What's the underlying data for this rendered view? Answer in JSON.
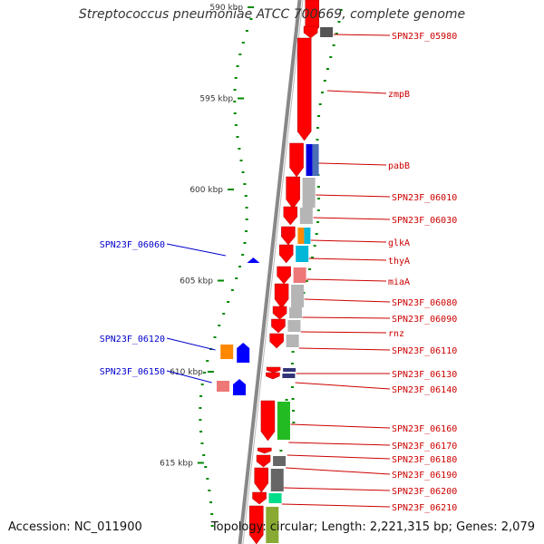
{
  "title": "Streptococcus pneumoniae ATCC 700669, complete genome",
  "ticks": [
    {
      "label": "590 kbp",
      "kbp": 590
    },
    {
      "label": "595 kbp",
      "kbp": 595
    },
    {
      "label": "600 kbp",
      "kbp": 600
    },
    {
      "label": "605 kbp",
      "kbp": 605
    },
    {
      "label": "610 kbp",
      "kbp": 610
    },
    {
      "label": "615 kbp",
      "kbp": 615
    }
  ],
  "right_labels": [
    {
      "text": "SPN23F_05980",
      "gene": "SPN23F_05980",
      "color": "#cc0000"
    },
    {
      "text": "zmpB",
      "gene": "zmpB",
      "color": "#cc0000"
    },
    {
      "text": "pabB",
      "gene": "pabB",
      "color": "#cc0000"
    },
    {
      "text": "SPN23F_06010",
      "gene": "SPN23F_06010",
      "color": "#cc0000"
    },
    {
      "text": "SPN23F_06030",
      "gene": "SPN23F_06030",
      "color": "#cc0000"
    },
    {
      "text": "glkA",
      "gene": "glkA",
      "color": "#cc0000"
    },
    {
      "text": "thyA",
      "gene": "thyA",
      "color": "#cc0000"
    },
    {
      "text": "miaA",
      "gene": "miaA",
      "color": "#cc0000"
    },
    {
      "text": "SPN23F_06080",
      "gene": "SPN23F_06080",
      "color": "#cc0000"
    },
    {
      "text": "SPN23F_06090",
      "gene": "SPN23F_06090",
      "color": "#cc0000"
    },
    {
      "text": "rnz",
      "gene": "rnz",
      "color": "#cc0000"
    },
    {
      "text": "SPN23F_06110",
      "gene": "SPN23F_06110",
      "color": "#cc0000"
    },
    {
      "text": "SPN23F_06130",
      "gene": "SPN23F_06130",
      "color": "#cc0000"
    },
    {
      "text": "SPN23F_06140",
      "gene": "SPN23F_06140",
      "color": "#cc0000"
    },
    {
      "text": "SPN23F_06160",
      "gene": "SPN23F_06160",
      "color": "#cc0000"
    },
    {
      "text": "SPN23F_06170",
      "gene": "SPN23F_06170",
      "color": "#cc0000"
    },
    {
      "text": "SPN23F_06180",
      "gene": "SPN23F_06180",
      "color": "#cc0000"
    },
    {
      "text": "SPN23F_06190",
      "gene": "SPN23F_06190",
      "color": "#cc0000"
    },
    {
      "text": "SPN23F_06200",
      "gene": "SPN23F_06200",
      "color": "#cc0000"
    },
    {
      "text": "SPN23F_06210",
      "gene": "SPN23F_06210",
      "color": "#cc0000"
    }
  ],
  "left_labels": [
    {
      "text": "SPN23F_06060",
      "gene": "SPN23F_06060",
      "color": "#0000cc"
    },
    {
      "text": "SPN23F_06120",
      "gene": "SPN23F_06120",
      "color": "#0000cc"
    },
    {
      "text": "SPN23F_06150",
      "gene": "SPN23F_06150",
      "color": "#0000cc"
    }
  ],
  "genes": [
    {
      "id": "SPN23F_05970",
      "strand": "+",
      "color": "#ff0000"
    },
    {
      "id": "SPN23F_05980",
      "strand": "+",
      "color": "#ff0000",
      "cog": "#555555"
    },
    {
      "id": "zmpB",
      "strand": "+",
      "color": "#ff0000"
    },
    {
      "id": "pabB",
      "strand": "+",
      "color": "#ff0000",
      "cog": "#0000dd",
      "cog2": "#4a6fb5"
    },
    {
      "id": "SPN23F_06010",
      "strand": "+",
      "color": "#ff0000",
      "cog": "#b5b5b5"
    },
    {
      "id": "SPN23F_06030",
      "strand": "+",
      "color": "#ff0000",
      "cog": "#b5b5b5"
    },
    {
      "id": "glkA",
      "strand": "+",
      "color": "#ff0000",
      "cog": "#ff8800",
      "cog2": "#00b7d9"
    },
    {
      "id": "thyA",
      "strand": "+",
      "color": "#ff0000",
      "cog": "#00b7d9"
    },
    {
      "id": "SPN23F_06060",
      "strand": "-",
      "color": "#0000ff"
    },
    {
      "id": "miaA",
      "strand": "+",
      "color": "#ff0000",
      "cog": "#ee7777"
    },
    {
      "id": "SPN23F_06080",
      "strand": "+",
      "color": "#ff0000",
      "cog": "#b5b5b5"
    },
    {
      "id": "SPN23F_06090",
      "strand": "+",
      "color": "#ff0000",
      "cog": "#b5b5b5"
    },
    {
      "id": "rnz",
      "strand": "+",
      "color": "#ff0000",
      "cog": "#b5b5b5"
    },
    {
      "id": "SPN23F_06110",
      "strand": "+",
      "color": "#ff0000",
      "cog": "#b5b5b5"
    },
    {
      "id": "SPN23F_06120",
      "strand": "-",
      "color": "#0000ff",
      "cog": "#ff8800"
    },
    {
      "id": "SPN23F_06130",
      "strand": "+",
      "color": "#ff0000",
      "cog": "#333377"
    },
    {
      "id": "SPN23F_06140",
      "strand": "+",
      "color": "#ff0000",
      "cog": "#333377"
    },
    {
      "id": "SPN23F_06150",
      "strand": "-",
      "color": "#0000ff",
      "cog": "#ee7777"
    },
    {
      "id": "SPN23F_06160",
      "strand": "+",
      "color": "#ff0000",
      "cog": "#22bb22"
    },
    {
      "id": "SPN23F_06170",
      "strand": "+",
      "color": "#ff0000"
    },
    {
      "id": "SPN23F_06180",
      "strand": "+",
      "color": "#ff0000",
      "cog": "#666666"
    },
    {
      "id": "SPN23F_06190",
      "strand": "+",
      "color": "#ff0000",
      "cog": "#666666"
    },
    {
      "id": "SPN23F_06200",
      "strand": "+",
      "color": "#ff0000",
      "cog": "#00dd88"
    },
    {
      "id": "SPN23F_06210",
      "strand": "+",
      "color": "#ff0000",
      "cog": "#88aa33"
    }
  ],
  "colors": {
    "backbone": "#888888",
    "plus_strand": "#ff0000",
    "minus_strand": "#0000ff",
    "gc_dots": "#008800",
    "label_plus": "#cc0000",
    "label_minus": "#0000cc"
  },
  "footer": {
    "accession": "Accession: NC_011900",
    "summary": "Topology: circular; Length: 2,221,315 bp; Genes: 2,079"
  }
}
